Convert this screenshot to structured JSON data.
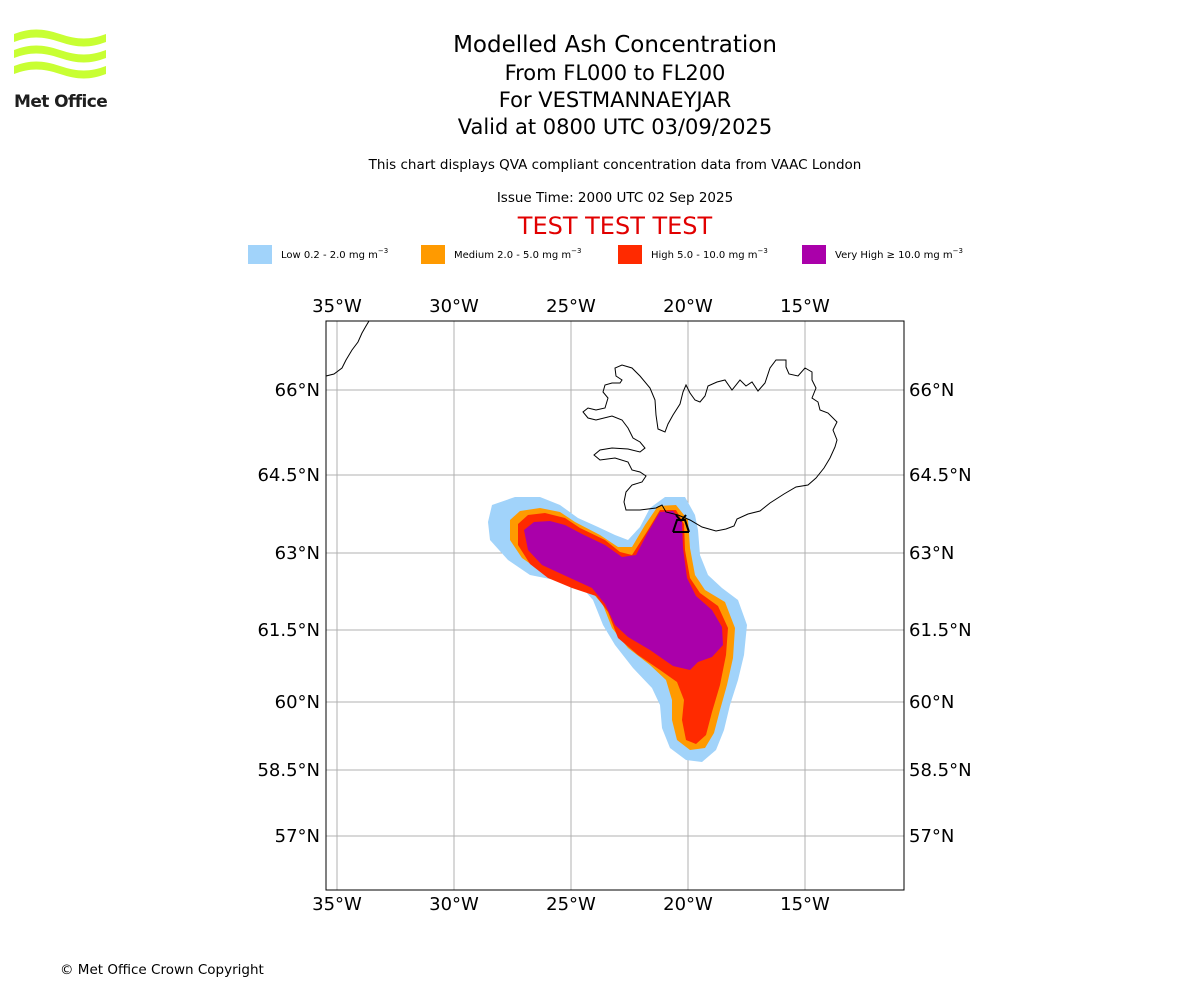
{
  "logo": {
    "text": "Met Office",
    "stripe_color": "#c8ff33"
  },
  "title": {
    "main": "Modelled Ash Concentration",
    "levels": "From FL000 to FL200",
    "volcano": "For VESTMANNAEYJAR",
    "valid": "Valid at 0800 UTC 03/09/2025"
  },
  "subtitle": "This chart displays QVA compliant concentration data from VAAC London",
  "issue_time": "Issue Time: 2000 UTC 02 Sep 2025",
  "test_banner": "TEST TEST TEST",
  "legend": [
    {
      "label": "Low 0.2 - 2.0 mg m",
      "color": "#a1d3fa"
    },
    {
      "label": "Medium 2.0 - 5.0 mg m",
      "color": "#ff9a00"
    },
    {
      "label": "High 5.0 - 10.0 mg m",
      "color": "#ff2a00"
    },
    {
      "label": "Very High ≥ 10.0 mg m",
      "color": "#aa00aa"
    }
  ],
  "legend_unit_exponent": "−3",
  "map": {
    "lon_range": [
      -36,
      -11.5
    ],
    "lat_range": [
      55.5,
      67.3
    ],
    "lon_ticks": [
      "35°W",
      "30°W",
      "25°W",
      "20°W",
      "15°W"
    ],
    "lat_ticks": [
      "66°N",
      "64.5°N",
      "63°N",
      "61.5°N",
      "60°N",
      "58.5°N",
      "57°N"
    ],
    "volcano_marker": "volcano-icon"
  },
  "copyright": "© Met Office Crown Copyright"
}
